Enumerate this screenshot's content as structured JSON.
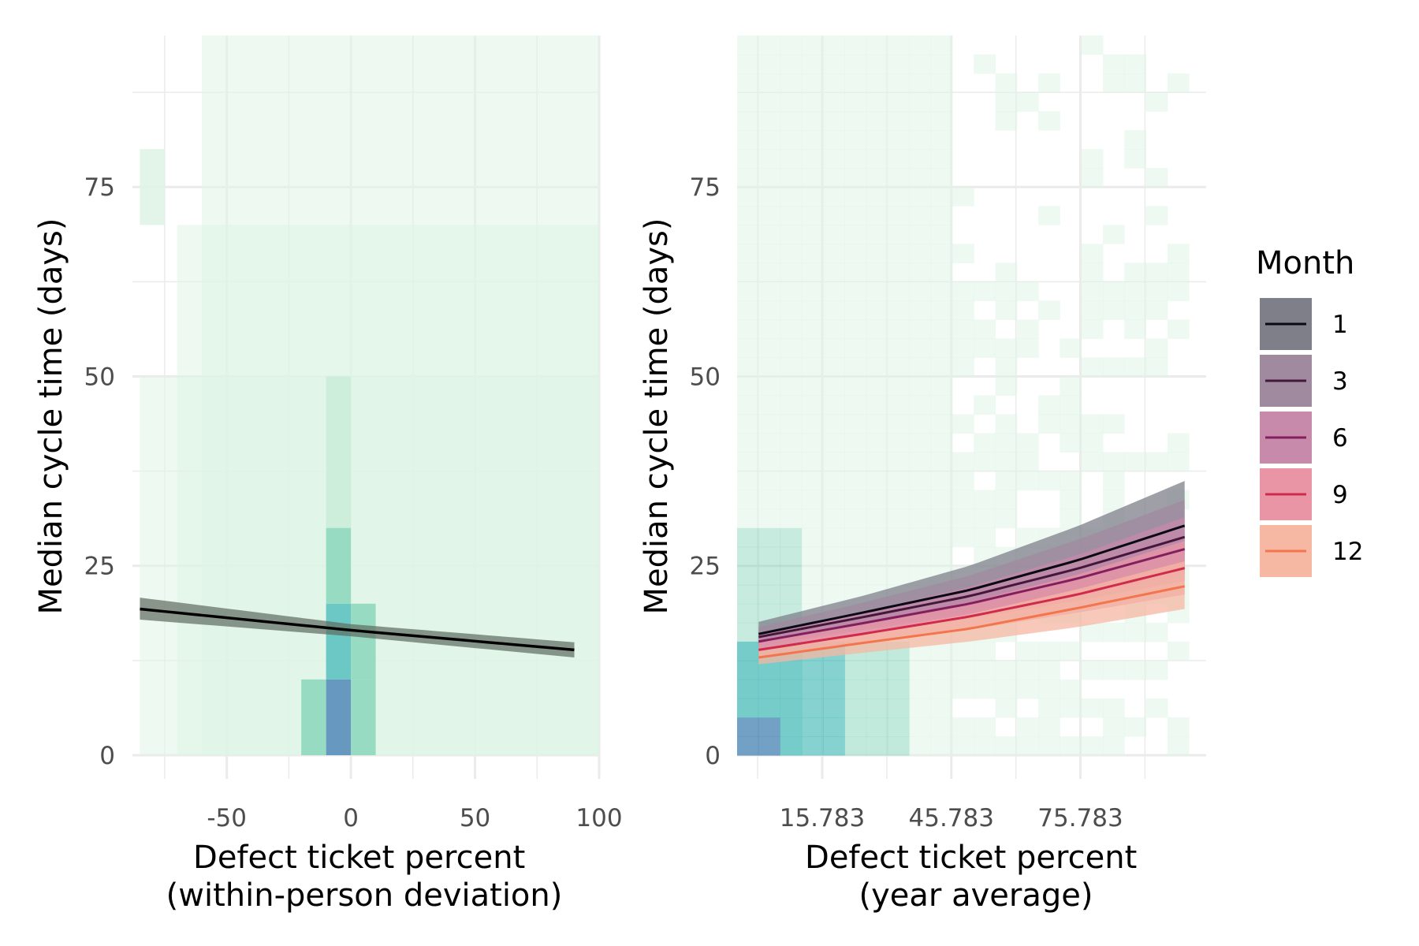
{
  "colors": {
    "tile_low": "#dff4e6",
    "tile_mid": "#8fd8bf",
    "tile_high": "#5ec3c0",
    "tile_max": "#5a8fbb",
    "grid": "#ebebeb",
    "fit_line": "#000000",
    "fit_ribbon": "#5e6b60"
  },
  "legend": {
    "title": "Month",
    "entries": [
      {
        "label": "1",
        "line": "#0a0a14",
        "fill": "#7f7f8a"
      },
      {
        "label": "3",
        "line": "#45173d",
        "fill": "#a08aa0"
      },
      {
        "label": "6",
        "line": "#841f5f",
        "fill": "#c78aab"
      },
      {
        "label": "9",
        "line": "#d02a4d",
        "fill": "#ea95a5"
      },
      {
        "label": "12",
        "line": "#f3754e",
        "fill": "#f6b7a3"
      }
    ]
  },
  "chart_data": [
    {
      "type": "heatmap",
      "overlay": "line",
      "panel": "left",
      "xlabel": "Defect ticket percent\n(within-person deviation)",
      "ylabel": "Median cycle time (days)",
      "xlim": [
        -88,
        100
      ],
      "ylim": [
        0,
        95
      ],
      "x_ticks": [
        -50,
        0,
        50,
        100
      ],
      "x_tick_labels": [
        "-50",
        "0",
        "50",
        "100"
      ],
      "y_ticks": [
        0,
        25,
        50,
        75
      ],
      "y_tick_labels": [
        "0",
        "25",
        "50",
        "75"
      ],
      "grid": true,
      "tiles": [
        {
          "x": -80,
          "y": 5,
          "level": 0
        },
        {
          "x": -80,
          "y": 15,
          "level": 0
        },
        {
          "x": -80,
          "y": 35,
          "level": 0
        },
        {
          "x": -80,
          "y": 45,
          "level": 0
        },
        {
          "x": -80,
          "y": 75,
          "level": 0
        },
        {
          "x": -70,
          "y": 5,
          "level": 0
        },
        {
          "x": -70,
          "y": 15,
          "level": 0
        },
        {
          "x": -70,
          "y": 25,
          "level": 0
        },
        {
          "x": -70,
          "y": 35,
          "level": 0
        },
        {
          "x": -70,
          "y": 45,
          "level": 0
        },
        {
          "x": -70,
          "y": 65,
          "level": 0
        },
        {
          "x": -60,
          "y": 5,
          "level": 0
        },
        {
          "x": -60,
          "y": 15,
          "level": 0
        },
        {
          "x": -60,
          "y": 25,
          "level": 0
        },
        {
          "x": -60,
          "y": 35,
          "level": 0
        },
        {
          "x": -60,
          "y": 45,
          "level": 0
        },
        {
          "x": -60,
          "y": 55,
          "level": 0
        },
        {
          "x": -60,
          "y": 65,
          "level": 0
        },
        {
          "x": -60,
          "y": 75,
          "level": 0
        },
        {
          "x": -60,
          "y": 85,
          "level": 0
        },
        {
          "x": -5,
          "y": 5,
          "level": 3
        },
        {
          "x": -5,
          "y": 15,
          "level": 2
        },
        {
          "x": -5,
          "y": 25,
          "level": 1
        },
        {
          "x": -5,
          "y": 35,
          "level": 0
        },
        {
          "x": -5,
          "y": 45,
          "level": 0
        },
        {
          "x": 5,
          "y": 5,
          "level": 1
        },
        {
          "x": 5,
          "y": 15,
          "level": 1
        },
        {
          "x": -15,
          "y": 5,
          "level": 1
        },
        {
          "x": -15,
          "y": 15,
          "level": 0
        }
      ],
      "fit": {
        "x": [
          -85,
          0,
          90
        ],
        "y": [
          19.3,
          16.5,
          13.9
        ],
        "lower": [
          17.9,
          15.7,
          12.9
        ],
        "upper": [
          20.8,
          17.3,
          14.9
        ]
      }
    },
    {
      "type": "heatmap",
      "overlay": "line",
      "panel": "right",
      "xlabel": "Defect ticket percent\n(year average)",
      "ylabel": "Median cycle time (days)",
      "xlim": [
        -4,
        105
      ],
      "ylim": [
        0,
        95
      ],
      "x_ticks": [
        15.783,
        45.783,
        75.783
      ],
      "x_tick_labels": [
        "15.783",
        "45.783",
        "75.783"
      ],
      "y_ticks": [
        0,
        25,
        50,
        75
      ],
      "y_tick_labels": [
        "0",
        "25",
        "50",
        "75"
      ],
      "grid": true,
      "tiles_note": "sparse 2D histogram; dense at low x and low y",
      "series": [
        {
          "name": "1",
          "x": [
            1,
            25,
            50,
            75,
            100
          ],
          "y": [
            16.0,
            18.8,
            21.8,
            25.7,
            30.3
          ],
          "lower": [
            14.6,
            16.8,
            19.0,
            21.6,
            24.6
          ],
          "upper": [
            17.6,
            21.0,
            25.0,
            30.2,
            36.2
          ]
        },
        {
          "name": "3",
          "x": [
            1,
            25,
            50,
            75,
            100
          ],
          "y": [
            15.6,
            18.2,
            21.0,
            24.6,
            28.8
          ],
          "lower": [
            14.4,
            16.5,
            18.6,
            21.0,
            23.9
          ],
          "upper": [
            16.9,
            20.1,
            23.7,
            28.4,
            33.7
          ]
        },
        {
          "name": "6",
          "x": [
            1,
            25,
            50,
            75,
            100
          ],
          "y": [
            15.0,
            17.4,
            20.0,
            23.3,
            27.2
          ],
          "lower": [
            14.0,
            16.0,
            18.0,
            20.4,
            23.0
          ],
          "upper": [
            16.1,
            18.9,
            22.2,
            26.4,
            31.4
          ]
        },
        {
          "name": "9",
          "x": [
            1,
            25,
            50,
            75,
            100
          ],
          "y": [
            13.9,
            16.0,
            18.3,
            21.2,
            24.7
          ],
          "lower": [
            13.0,
            14.8,
            16.6,
            18.8,
            21.2
          ],
          "upper": [
            14.9,
            17.3,
            20.2,
            23.8,
            28.3
          ]
        },
        {
          "name": "12",
          "x": [
            1,
            25,
            50,
            75,
            100
          ],
          "y": [
            12.9,
            14.8,
            16.7,
            19.4,
            22.3
          ],
          "lower": [
            12.0,
            13.5,
            15.0,
            16.9,
            19.3
          ],
          "upper": [
            13.9,
            16.1,
            18.6,
            21.9,
            25.6
          ]
        }
      ]
    }
  ]
}
